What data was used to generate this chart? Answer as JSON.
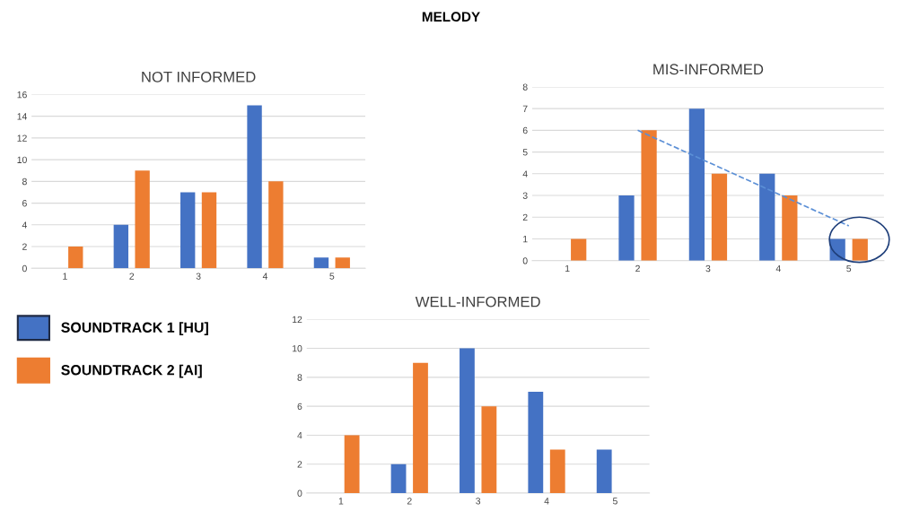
{
  "chart_data": [
    {
      "type": "bar",
      "title": "NOT INFORMED",
      "annotations": [
        "MELODY"
      ],
      "categories": [
        "1",
        "2",
        "3",
        "4",
        "5"
      ],
      "series": [
        {
          "name": "SOUNDTRACK 1 [HU]",
          "color": "#4472c4",
          "values": [
            0,
            4,
            7,
            15,
            1
          ]
        },
        {
          "name": "SOUNDTRACK 2 [AI]",
          "color": "#ed7d31",
          "values": [
            2,
            9,
            7,
            8,
            1
          ]
        }
      ],
      "ylim": [
        0,
        16
      ],
      "yticks": [
        0,
        2,
        4,
        6,
        8,
        10,
        12,
        14,
        16
      ],
      "grid": "y",
      "legend": "bottom left"
    },
    {
      "type": "bar",
      "title": "MIS-INFORMED",
      "categories": [
        "1",
        "2",
        "3",
        "4",
        "5"
      ],
      "series": [
        {
          "color": "#4472c4",
          "values": [
            0,
            3,
            7,
            4,
            1
          ]
        },
        {
          "color": "#ed7d31",
          "values": [
            1,
            6,
            4,
            3,
            1
          ]
        },
        {
          "type": "line",
          "color": "#5b8fd6",
          "x": [
            "2",
            "5"
          ],
          "values": [
            6,
            1.6
          ],
          "line_style": "dashed"
        }
      ],
      "ylim": [
        0,
        8
      ],
      "yticks": [
        0,
        1,
        2,
        3,
        4,
        5,
        6,
        7,
        8
      ],
      "grid": "y"
    },
    {
      "type": "bar",
      "title": "WELL-INFORMED",
      "categories": [
        "1",
        "2",
        "3",
        "4",
        "5"
      ],
      "series": [
        {
          "color": "#4472c4",
          "values": [
            0,
            2,
            10,
            7,
            3
          ]
        },
        {
          "color": "#ed7d31",
          "values": [
            4,
            9,
            6,
            3,
            0
          ]
        }
      ],
      "ylim": [
        0,
        12
      ],
      "yticks": [
        0,
        2,
        4,
        6,
        8,
        10,
        12
      ],
      "grid": "y"
    }
  ]
}
